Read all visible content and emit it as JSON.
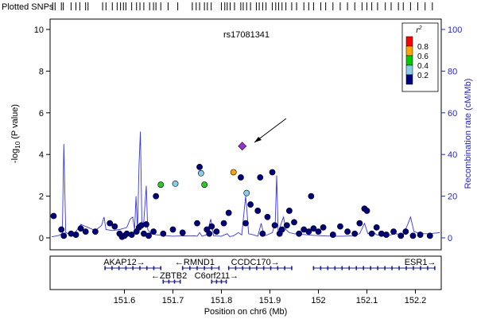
{
  "chart_data": {
    "type": "scatter",
    "title": "",
    "lead_snp": {
      "label": "rs17081341",
      "x": 151.843,
      "y": 4.4
    },
    "top_track_label": "Plotted SNPs",
    "xlabel": "Position on chr6 (Mb)",
    "ylabel_prefix": "-log",
    "ylabel_sub": "10",
    "ylabel_suffix": " (P value)",
    "y2label": "Recombination rate (cM/Mb)",
    "xlim": [
      151.45,
      152.25
    ],
    "ylim": [
      0,
      10
    ],
    "y2lim": [
      0,
      100
    ],
    "x_ticks": [
      151.6,
      151.7,
      151.8,
      151.9,
      152,
      152.1,
      152.2
    ],
    "x_tick_labels": [
      "151.6",
      "151.7",
      "151.8",
      "151.9",
      "152",
      "152.1",
      "152.2"
    ],
    "y_ticks": [
      0,
      2,
      4,
      6,
      8,
      10
    ],
    "y2_ticks": [
      0,
      20,
      40,
      60,
      80,
      100
    ],
    "legend": {
      "title": "r",
      "title_sup": "2",
      "position": "top-right",
      "bins": [
        {
          "label": "0.8",
          "color": "#ff0000"
        },
        {
          "label": "0.6",
          "color": "#ffa500"
        },
        {
          "label": "0.4",
          "color": "#00cc00"
        },
        {
          "label": "0.2",
          "color": "#87ceeb"
        },
        {
          "label": "",
          "color": "#000080"
        }
      ]
    },
    "colors": {
      "navy": "#000080",
      "light_blue": "#87ceeb",
      "green": "#22cc22",
      "orange": "#ffa500",
      "purple": "#9933cc",
      "recomb_line": "#3333ff"
    },
    "points": [
      {
        "x": 151.454,
        "y": 1.05,
        "c": "navy"
      },
      {
        "x": 151.47,
        "y": 0.4,
        "c": "navy"
      },
      {
        "x": 151.475,
        "y": 0.1,
        "c": "navy"
      },
      {
        "x": 151.49,
        "y": 0.2,
        "c": "navy"
      },
      {
        "x": 151.5,
        "y": 0.15,
        "c": "navy"
      },
      {
        "x": 151.51,
        "y": 0.45,
        "c": "navy"
      },
      {
        "x": 151.52,
        "y": 0.3,
        "c": "navy"
      },
      {
        "x": 151.54,
        "y": 0.3,
        "c": "navy"
      },
      {
        "x": 151.57,
        "y": 0.7,
        "c": "navy"
      },
      {
        "x": 151.58,
        "y": 0.55,
        "c": "navy"
      },
      {
        "x": 151.59,
        "y": 0.2,
        "c": "navy"
      },
      {
        "x": 151.595,
        "y": 0.05,
        "c": "navy"
      },
      {
        "x": 151.6,
        "y": 0.1,
        "c": "navy"
      },
      {
        "x": 151.605,
        "y": 0.2,
        "c": "navy"
      },
      {
        "x": 151.615,
        "y": 0.15,
        "c": "navy"
      },
      {
        "x": 151.625,
        "y": 0.3,
        "c": "navy"
      },
      {
        "x": 151.63,
        "y": 0.5,
        "c": "navy"
      },
      {
        "x": 151.635,
        "y": 0.6,
        "c": "navy"
      },
      {
        "x": 151.64,
        "y": 0.2,
        "c": "navy"
      },
      {
        "x": 151.645,
        "y": 0.65,
        "c": "navy"
      },
      {
        "x": 151.65,
        "y": 0.1,
        "c": "navy"
      },
      {
        "x": 151.66,
        "y": 0.3,
        "c": "navy"
      },
      {
        "x": 151.665,
        "y": 2.0,
        "c": "navy"
      },
      {
        "x": 151.68,
        "y": 0.2,
        "c": "navy"
      },
      {
        "x": 151.7,
        "y": 0.4,
        "c": "navy"
      },
      {
        "x": 151.72,
        "y": 0.25,
        "c": "navy"
      },
      {
        "x": 151.75,
        "y": 0.7,
        "c": "navy"
      },
      {
        "x": 151.755,
        "y": 3.4,
        "c": "navy"
      },
      {
        "x": 151.77,
        "y": 0.4,
        "c": "navy"
      },
      {
        "x": 151.775,
        "y": 0.2,
        "c": "navy"
      },
      {
        "x": 151.78,
        "y": 0.55,
        "c": "navy"
      },
      {
        "x": 151.79,
        "y": 0.3,
        "c": "navy"
      },
      {
        "x": 151.805,
        "y": 0.7,
        "c": "navy"
      },
      {
        "x": 151.815,
        "y": 1.2,
        "c": "navy"
      },
      {
        "x": 151.84,
        "y": 2.9,
        "c": "navy"
      },
      {
        "x": 151.85,
        "y": 0.7,
        "c": "navy"
      },
      {
        "x": 151.86,
        "y": 1.6,
        "c": "navy"
      },
      {
        "x": 151.875,
        "y": 1.3,
        "c": "navy"
      },
      {
        "x": 151.88,
        "y": 2.9,
        "c": "navy"
      },
      {
        "x": 151.885,
        "y": 0.2,
        "c": "navy"
      },
      {
        "x": 151.895,
        "y": 1.0,
        "c": "navy"
      },
      {
        "x": 151.905,
        "y": 3.15,
        "c": "navy"
      },
      {
        "x": 151.91,
        "y": 0.6,
        "c": "navy"
      },
      {
        "x": 151.92,
        "y": 0.2,
        "c": "navy"
      },
      {
        "x": 151.925,
        "y": 0.4,
        "c": "navy"
      },
      {
        "x": 151.935,
        "y": 0.6,
        "c": "navy"
      },
      {
        "x": 151.94,
        "y": 1.3,
        "c": "navy"
      },
      {
        "x": 151.95,
        "y": 0.75,
        "c": "navy"
      },
      {
        "x": 151.96,
        "y": 0.2,
        "c": "navy"
      },
      {
        "x": 151.97,
        "y": 0.4,
        "c": "navy"
      },
      {
        "x": 151.98,
        "y": 0.3,
        "c": "navy"
      },
      {
        "x": 151.985,
        "y": 2.0,
        "c": "navy"
      },
      {
        "x": 151.99,
        "y": 0.45,
        "c": "navy"
      },
      {
        "x": 152.0,
        "y": 0.3,
        "c": "navy"
      },
      {
        "x": 152.01,
        "y": 0.5,
        "c": "navy"
      },
      {
        "x": 152.03,
        "y": 0.15,
        "c": "navy"
      },
      {
        "x": 152.045,
        "y": 0.55,
        "c": "navy"
      },
      {
        "x": 152.06,
        "y": 0.3,
        "c": "navy"
      },
      {
        "x": 152.075,
        "y": 0.2,
        "c": "navy"
      },
      {
        "x": 152.085,
        "y": 0.7,
        "c": "navy"
      },
      {
        "x": 152.095,
        "y": 1.4,
        "c": "navy"
      },
      {
        "x": 152.1,
        "y": 1.3,
        "c": "navy"
      },
      {
        "x": 152.11,
        "y": 0.2,
        "c": "navy"
      },
      {
        "x": 152.12,
        "y": 0.5,
        "c": "navy"
      },
      {
        "x": 152.13,
        "y": 0.2,
        "c": "navy"
      },
      {
        "x": 152.14,
        "y": 0.15,
        "c": "navy"
      },
      {
        "x": 152.155,
        "y": 0.3,
        "c": "navy"
      },
      {
        "x": 152.17,
        "y": 0.1,
        "c": "navy"
      },
      {
        "x": 152.18,
        "y": 0.3,
        "c": "navy"
      },
      {
        "x": 152.195,
        "y": 0.1,
        "c": "navy"
      },
      {
        "x": 152.21,
        "y": 0.15,
        "c": "navy"
      },
      {
        "x": 152.23,
        "y": 0.1,
        "c": "navy"
      },
      {
        "x": 151.675,
        "y": 2.55,
        "c": "green"
      },
      {
        "x": 151.765,
        "y": 2.55,
        "c": "green"
      },
      {
        "x": 151.705,
        "y": 2.6,
        "c": "light_blue"
      },
      {
        "x": 151.758,
        "y": 3.1,
        "c": "light_blue"
      },
      {
        "x": 151.852,
        "y": 2.15,
        "c": "light_blue"
      },
      {
        "x": 151.825,
        "y": 3.15,
        "c": "orange"
      }
    ],
    "recombination": [
      [
        151.45,
        0.5
      ],
      [
        151.465,
        1.2
      ],
      [
        151.472,
        2.2
      ],
      [
        151.475,
        45
      ],
      [
        151.479,
        2.5
      ],
      [
        151.49,
        1.5
      ],
      [
        151.5,
        3
      ],
      [
        151.51,
        6.5
      ],
      [
        151.525,
        5
      ],
      [
        151.54,
        3.5
      ],
      [
        151.553,
        6
      ],
      [
        151.558,
        10
      ],
      [
        151.562,
        4
      ],
      [
        151.575,
        3.5
      ],
      [
        151.59,
        4
      ],
      [
        151.605,
        5
      ],
      [
        151.612,
        9
      ],
      [
        151.617,
        10
      ],
      [
        151.621,
        4
      ],
      [
        151.624,
        20
      ],
      [
        151.627,
        3
      ],
      [
        151.63,
        34
      ],
      [
        151.633,
        51
      ],
      [
        151.636,
        6
      ],
      [
        151.64,
        8
      ],
      [
        151.645,
        25
      ],
      [
        151.648,
        4
      ],
      [
        151.655,
        2
      ],
      [
        151.665,
        1.5
      ],
      [
        151.68,
        1.2
      ],
      [
        151.7,
        0.8
      ],
      [
        151.72,
        1
      ],
      [
        151.735,
        0.9
      ],
      [
        151.745,
        1
      ],
      [
        151.75,
        0.8
      ],
      [
        151.755,
        2.5
      ],
      [
        151.76,
        0.8
      ],
      [
        151.77,
        1.5
      ],
      [
        151.778,
        9
      ],
      [
        151.784,
        1
      ],
      [
        151.8,
        0.8
      ],
      [
        151.812,
        2
      ],
      [
        151.817,
        0.6
      ],
      [
        151.825,
        1
      ],
      [
        151.835,
        2.5
      ],
      [
        151.842,
        1.4
      ],
      [
        151.85,
        20
      ],
      [
        151.853,
        12
      ],
      [
        151.856,
        2
      ],
      [
        151.865,
        1.5
      ],
      [
        151.875,
        0.8
      ],
      [
        151.882,
        7
      ],
      [
        151.888,
        1
      ],
      [
        151.895,
        1.5
      ],
      [
        151.905,
        2.5
      ],
      [
        151.911,
        7
      ],
      [
        151.914,
        30
      ],
      [
        151.917,
        3
      ],
      [
        151.922,
        6
      ],
      [
        151.928,
        10
      ],
      [
        151.933,
        4
      ],
      [
        151.94,
        2.5
      ],
      [
        151.95,
        2
      ],
      [
        151.96,
        1.8
      ],
      [
        151.975,
        1.5
      ],
      [
        151.99,
        1.2
      ],
      [
        152.01,
        1
      ],
      [
        152.03,
        0.8
      ],
      [
        152.05,
        0.8
      ],
      [
        152.07,
        1
      ],
      [
        152.085,
        2
      ],
      [
        152.095,
        7
      ],
      [
        152.102,
        2
      ],
      [
        152.112,
        3
      ],
      [
        152.12,
        1.5
      ],
      [
        152.13,
        1
      ],
      [
        152.14,
        1
      ],
      [
        152.15,
        1.5
      ],
      [
        152.16,
        2
      ],
      [
        152.175,
        1.5
      ],
      [
        152.185,
        7
      ],
      [
        152.19,
        10
      ],
      [
        152.197,
        3
      ],
      [
        152.21,
        2
      ],
      [
        152.23,
        2
      ],
      [
        152.25,
        2.5
      ]
    ],
    "genes": [
      {
        "name": "AKAP12",
        "start": 151.56,
        "end": 151.675,
        "row": 0,
        "label_x": 151.6,
        "arrow": "→",
        "arrow_dir": "right"
      },
      {
        "name": "RMND1",
        "start": 151.72,
        "end": 151.795,
        "row": 0,
        "label_x": 151.745,
        "arrow": "←",
        "arrow_dir": "left"
      },
      {
        "name": "CCDC170",
        "start": 151.815,
        "end": 151.945,
        "row": 0,
        "label_x": 151.87,
        "arrow": "→",
        "arrow_dir": "right"
      },
      {
        "name": "ESR1",
        "start": 151.99,
        "end": 152.24,
        "row": 0,
        "label_x": 152.21,
        "arrow": "→",
        "arrow_dir": "right"
      },
      {
        "name": "ZBTB2",
        "start": 151.68,
        "end": 151.715,
        "row": 1,
        "label_x": 151.692,
        "arrow": "←",
        "arrow_dir": "left"
      },
      {
        "name": "C6orf211",
        "start": 151.78,
        "end": 151.81,
        "row": 1,
        "label_x": 151.79,
        "arrow": "→",
        "arrow_dir": "right"
      }
    ],
    "snp_ticks": [
      151.452,
      151.457,
      151.47,
      151.474,
      151.49,
      151.5,
      151.508,
      151.52,
      151.525,
      151.555,
      151.562,
      151.575,
      151.585,
      151.592,
      151.598,
      151.603,
      151.615,
      151.625,
      151.632,
      151.64,
      151.652,
      151.66,
      151.665,
      151.675,
      151.69,
      151.71,
      151.74,
      151.748,
      151.755,
      151.765,
      151.771,
      151.779,
      151.8,
      151.807,
      151.812,
      151.818,
      151.827,
      151.84,
      151.845,
      151.852,
      151.86,
      151.872,
      151.878,
      151.885,
      151.892,
      151.905,
      151.912,
      151.918,
      151.925,
      151.933,
      151.945,
      151.955,
      151.97,
      151.98,
      151.99,
      152.005,
      152.015,
      152.03,
      152.045,
      152.06,
      152.075,
      152.09,
      152.1,
      152.11,
      152.122,
      152.138,
      152.15,
      152.165,
      152.175,
      152.19,
      152.205,
      152.22,
      152.235
    ]
  }
}
